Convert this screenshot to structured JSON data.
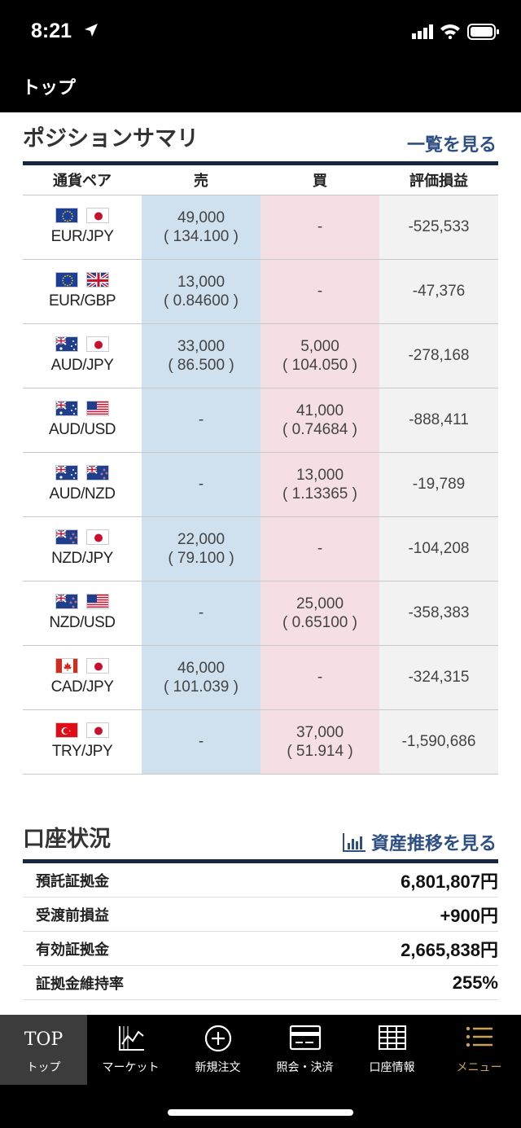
{
  "status_bar": {
    "time": "8:21"
  },
  "nav": {
    "title": "トップ"
  },
  "positions": {
    "title": "ポジションサマリ",
    "link": "一覧を見る",
    "headers": [
      "通貨ペア",
      "売",
      "買",
      "評価損益"
    ],
    "rows": [
      {
        "pair": "EUR/JPY",
        "flags": [
          "eu",
          "jp"
        ],
        "sell_amount": "49,000",
        "sell_rate": "( 134.100 )",
        "buy_amount": "-",
        "buy_rate": "",
        "pl": "-525,533"
      },
      {
        "pair": "EUR/GBP",
        "flags": [
          "eu",
          "gb"
        ],
        "sell_amount": "13,000",
        "sell_rate": "( 0.84600 )",
        "buy_amount": "-",
        "buy_rate": "",
        "pl": "-47,376"
      },
      {
        "pair": "AUD/JPY",
        "flags": [
          "au",
          "jp"
        ],
        "sell_amount": "33,000",
        "sell_rate": "( 86.500 )",
        "buy_amount": "5,000",
        "buy_rate": "( 104.050 )",
        "pl": "-278,168"
      },
      {
        "pair": "AUD/USD",
        "flags": [
          "au",
          "us"
        ],
        "sell_amount": "-",
        "sell_rate": "",
        "buy_amount": "41,000",
        "buy_rate": "( 0.74684 )",
        "pl": "-888,411"
      },
      {
        "pair": "AUD/NZD",
        "flags": [
          "au",
          "nz"
        ],
        "sell_amount": "-",
        "sell_rate": "",
        "buy_amount": "13,000",
        "buy_rate": "( 1.13365 )",
        "pl": "-19,789"
      },
      {
        "pair": "NZD/JPY",
        "flags": [
          "nz",
          "jp"
        ],
        "sell_amount": "22,000",
        "sell_rate": "( 79.100 )",
        "buy_amount": "-",
        "buy_rate": "",
        "pl": "-104,208"
      },
      {
        "pair": "NZD/USD",
        "flags": [
          "nz",
          "us"
        ],
        "sell_amount": "-",
        "sell_rate": "",
        "buy_amount": "25,000",
        "buy_rate": "( 0.65100 )",
        "pl": "-358,383"
      },
      {
        "pair": "CAD/JPY",
        "flags": [
          "ca",
          "jp"
        ],
        "sell_amount": "46,000",
        "sell_rate": "( 101.039 )",
        "buy_amount": "-",
        "buy_rate": "",
        "pl": "-324,315"
      },
      {
        "pair": "TRY/JPY",
        "flags": [
          "tr",
          "jp"
        ],
        "sell_amount": "-",
        "sell_rate": "",
        "buy_amount": "37,000",
        "buy_rate": "( 51.914 )",
        "pl": "-1,590,686"
      }
    ]
  },
  "account": {
    "title": "口座状況",
    "link": "資産推移を見る",
    "rows": [
      {
        "label": "預託証拠金",
        "value": "6,801,807円"
      },
      {
        "label": "受渡前損益",
        "value": "+900円"
      },
      {
        "label": "有効証拠金",
        "value": "2,665,838円"
      },
      {
        "label": "証拠金維持率",
        "value": "255%"
      }
    ]
  },
  "tabs": [
    {
      "icon": "top-text-icon",
      "icon_text": "TOP",
      "label": "トップ"
    },
    {
      "icon": "chart-icon",
      "label": "マーケット"
    },
    {
      "icon": "plus-circle-icon",
      "label": "新規注文"
    },
    {
      "icon": "card-icon",
      "label": "照会・決済"
    },
    {
      "icon": "grid-icon",
      "label": "口座情報"
    },
    {
      "icon": "menu-icon",
      "label": "メニュー"
    }
  ],
  "colors": {
    "accent": "#2e4f85",
    "sell_bg": "#cfe0ee",
    "buy_bg": "#f5dfe3",
    "menu_gold": "#c8a25a"
  }
}
